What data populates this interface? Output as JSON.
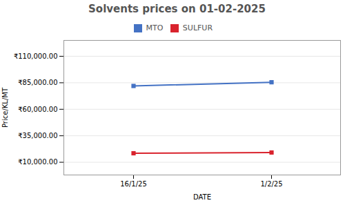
{
  "chart_data": {
    "type": "line",
    "title": "Solvents prices on 01-02-2025",
    "xlabel": "DATE",
    "ylabel": "Price/KL/MT",
    "categories": [
      "16/1/25",
      "1/2/25"
    ],
    "series": [
      {
        "name": "MTO",
        "color": "#4472c4",
        "values": [
          82000,
          85500
        ]
      },
      {
        "name": "SULFUR",
        "color": "#d9232d",
        "values": [
          18500,
          19200
        ]
      }
    ],
    "ylim": [
      -2000,
      125000
    ],
    "yticks": [
      {
        "value": 10000,
        "label": "₹10,000.00"
      },
      {
        "value": 35000,
        "label": "₹35,000.00"
      },
      {
        "value": 60000,
        "label": "₹60,000.00"
      },
      {
        "value": 85000,
        "label": "₹85,000.00"
      },
      {
        "value": 110000,
        "label": "₹110,000.00"
      }
    ],
    "grid": true,
    "legend": "top",
    "marker": "square"
  }
}
